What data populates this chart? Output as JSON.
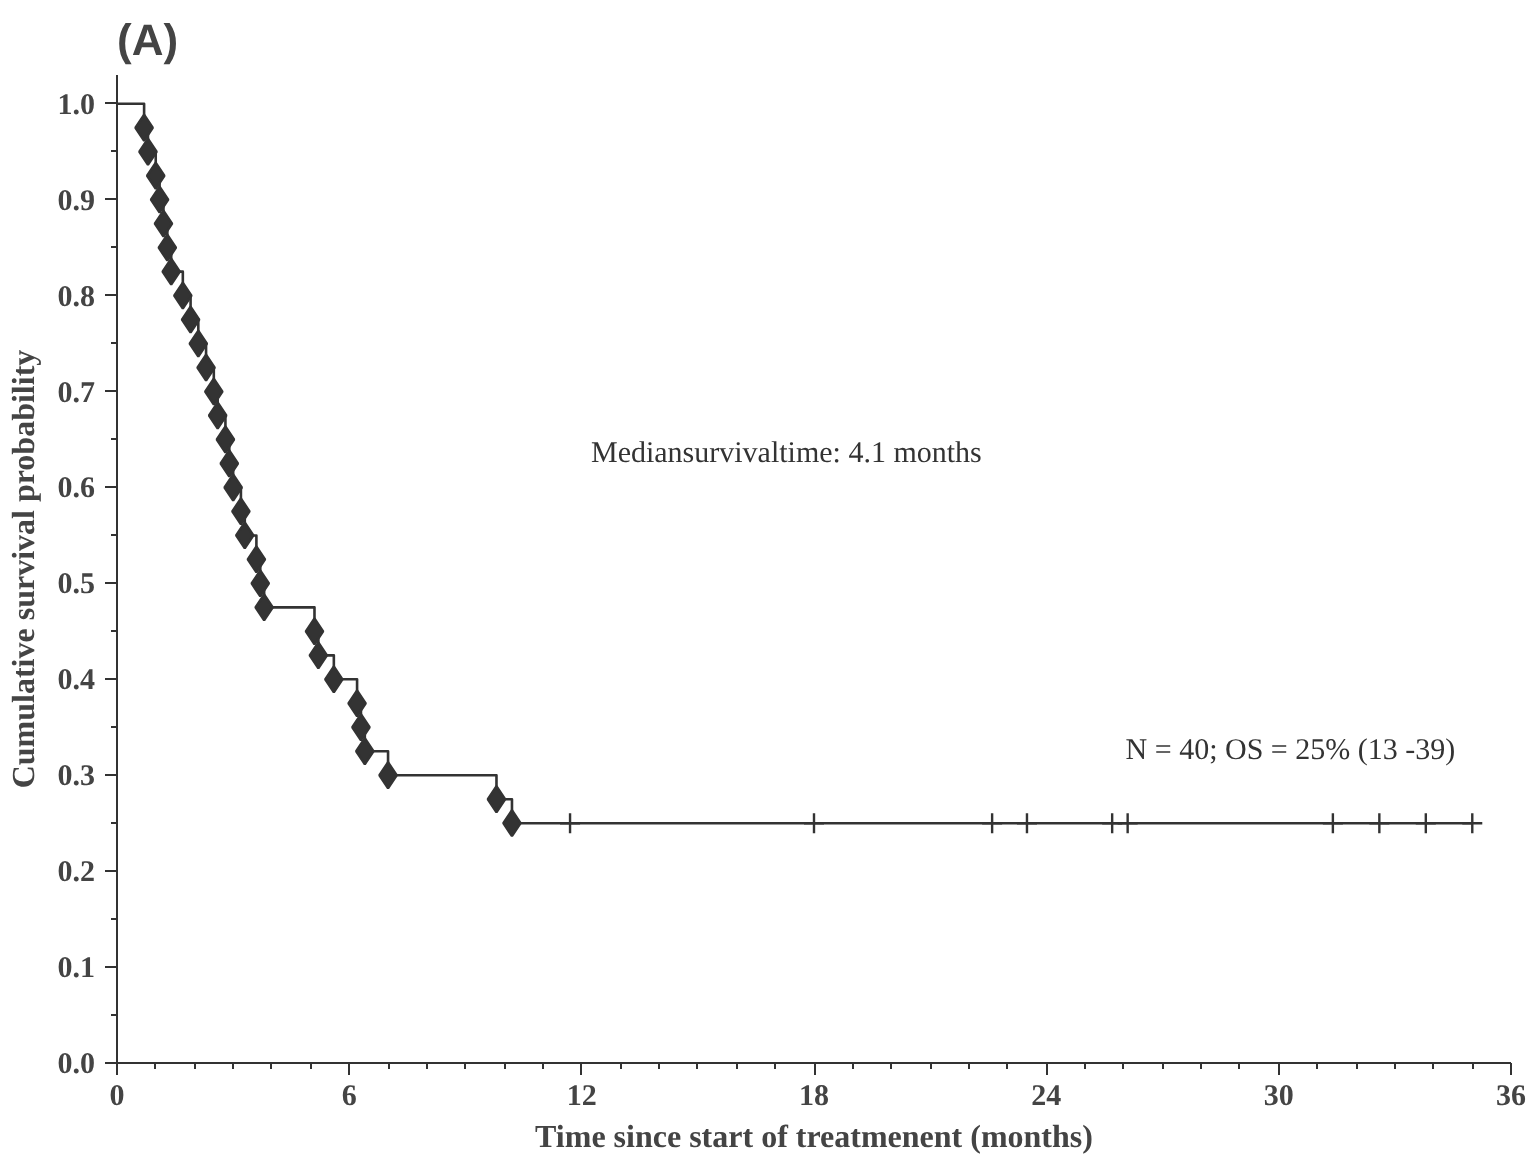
{
  "chart_data": {
    "type": "step",
    "title": "(A)",
    "xlabel": "Time since start of treatmenent (months)",
    "ylabel": "Cumulative survival probability",
    "xlim": [
      0,
      36
    ],
    "xticks": [
      0,
      6,
      12,
      18,
      24,
      30,
      36
    ],
    "ylim": [
      0,
      1.03
    ],
    "yticks": [
      {
        "value": 0,
        "label": "0.0"
      },
      0.1,
      0.2,
      0.3,
      0.4,
      0.5,
      0.6,
      0.7,
      0.8,
      0.9,
      {
        "value": 1,
        "label": "1.0"
      }
    ],
    "grid": false,
    "annotations": [
      "Mediansurvivaltime: 4.1 months",
      "N = 40; OS = 25% (13 -39)"
    ],
    "series": [
      {
        "color": "#333333",
        "line_style": "solid",
        "marker": "none",
        "x": [
          0,
          0.7,
          0.8,
          1.0,
          1.1,
          1.2,
          1.3,
          1.4,
          1.7,
          1.9,
          2.1,
          2.3,
          2.5,
          2.6,
          2.8,
          2.9,
          3.0,
          3.2,
          3.3,
          3.6,
          3.7,
          3.8,
          5.1,
          5.2,
          5.6,
          6.2,
          6.3,
          6.4,
          7.0,
          9.8,
          10.2,
          35.0
        ],
        "values": [
          1,
          0.975,
          0.95,
          0.925,
          0.9,
          0.875,
          0.85,
          0.825,
          0.8,
          0.775,
          0.75,
          0.725,
          0.7,
          0.675,
          0.65,
          0.625,
          0.6,
          0.575,
          0.55,
          0.525,
          0.5,
          0.475,
          0.45,
          0.425,
          0.4,
          0.375,
          0.35,
          0.325,
          0.3,
          0.275,
          0.25,
          0.25
        ]
      },
      {
        "type": "scatter",
        "color": "#333333",
        "marker": "diamond",
        "x": [
          0.7,
          0.8,
          1.0,
          1.1,
          1.2,
          1.3,
          1.4,
          1.7,
          1.9,
          2.1,
          2.3,
          2.5,
          2.6,
          2.8,
          2.9,
          3.0,
          3.2,
          3.3,
          3.6,
          3.7,
          3.8,
          5.1,
          5.2,
          5.6,
          6.2,
          6.3,
          6.4,
          7.0,
          9.8,
          10.2
        ],
        "values": [
          0.975,
          0.95,
          0.925,
          0.9,
          0.875,
          0.85,
          0.825,
          0.8,
          0.775,
          0.75,
          0.725,
          0.7,
          0.675,
          0.65,
          0.625,
          0.6,
          0.575,
          0.55,
          0.525,
          0.5,
          0.475,
          0.45,
          0.425,
          0.4,
          0.375,
          0.35,
          0.325,
          0.3,
          0.275,
          0.25
        ]
      },
      {
        "type": "scatter",
        "color": "#333333",
        "marker": "cross",
        "x": [
          11.7,
          18.0,
          22.6,
          23.5,
          25.7,
          26.1,
          31.4,
          32.6,
          33.8,
          35.0
        ],
        "values": [
          0.25,
          0.25,
          0.25,
          0.25,
          0.25,
          0.25,
          0.25,
          0.25,
          0.25,
          0.25
        ]
      }
    ]
  }
}
